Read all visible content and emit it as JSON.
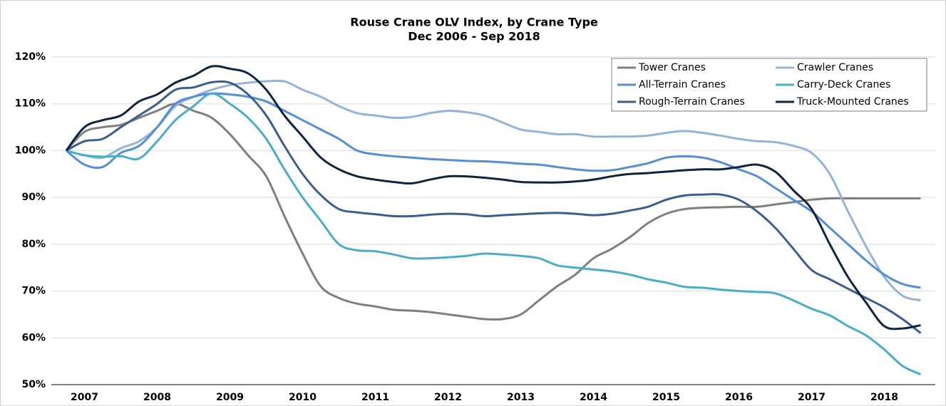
{
  "chart_data": {
    "type": "line",
    "title": "Rouse Crane OLV Index, by Crane Type",
    "subtitle": "Dec 2006 - Sep 2018",
    "categories": [
      null,
      "2007",
      null,
      null,
      null,
      "2008",
      null,
      null,
      null,
      "2009",
      null,
      null,
      null,
      "2010",
      null,
      null,
      null,
      "2011",
      null,
      null,
      null,
      "2012",
      null,
      null,
      null,
      "2013",
      null,
      null,
      null,
      "2014",
      null,
      null,
      null,
      "2015",
      null,
      null,
      null,
      "2016",
      null,
      null,
      null,
      "2017",
      null,
      null,
      null,
      "2018",
      null,
      null
    ],
    "series": [
      {
        "name": "Tower Cranes",
        "color": "#7f7f7f",
        "values": [
          100,
          104,
          105,
          105.5,
          107,
          108.5,
          110,
          108.5,
          107,
          103.5,
          99,
          94.5,
          86,
          78,
          71,
          68.5,
          67.3,
          66.7,
          66,
          65.8,
          65.5,
          65,
          64.5,
          64,
          64,
          65,
          68,
          71,
          73.5,
          77,
          79,
          81.5,
          84.5,
          86.5,
          87.5,
          87.8,
          87.9,
          88,
          88,
          88.5,
          89,
          89.5,
          89.8,
          89.8,
          89.8,
          89.8,
          89.8,
          89.8
        ]
      },
      {
        "name": "Crawler Cranes",
        "color": "#95b3d7",
        "values": [
          100,
          99,
          98.5,
          100.5,
          102,
          105,
          109.5,
          111.5,
          113,
          114,
          114.5,
          114.8,
          114.8,
          113,
          111.5,
          109.5,
          108,
          107.5,
          107,
          107.2,
          108,
          108.5,
          108.2,
          107.5,
          106,
          104.5,
          104,
          103.5,
          103.5,
          103,
          103,
          103,
          103.2,
          103.8,
          104.2,
          103.8,
          103.2,
          102.5,
          102,
          101.8,
          101,
          99.5,
          95,
          87,
          79.5,
          73,
          69,
          68
        ]
      },
      {
        "name": "All-Terrain Cranes",
        "color": "#558ed5",
        "values": [
          100,
          97,
          96.5,
          99.5,
          101,
          105,
          110,
          111.5,
          112.2,
          112,
          111.5,
          110.5,
          108.5,
          106.5,
          104.5,
          102.5,
          100,
          99.2,
          98.8,
          98.5,
          98.2,
          98,
          97.8,
          97.7,
          97.5,
          97.2,
          97,
          96.5,
          96,
          95.7,
          95.8,
          96.5,
          97.3,
          98.5,
          98.8,
          98.5,
          97.5,
          96,
          94.5,
          92,
          89.5,
          87,
          83.5,
          80,
          76.5,
          73.5,
          71.5,
          70.7
        ]
      },
      {
        "name": "Carry-Deck Cranes",
        "color": "#4bacc6",
        "values": [
          100,
          99,
          98.7,
          98.8,
          98.3,
          102,
          106.5,
          109.5,
          112.2,
          110,
          107,
          102.5,
          96,
          90,
          85,
          80,
          78.7,
          78.5,
          77.8,
          77,
          77,
          77.2,
          77.5,
          78,
          77.8,
          77.5,
          77,
          75.5,
          75,
          74.6,
          74.2,
          73.5,
          72.5,
          71.8,
          70.9,
          70.7,
          70.3,
          70,
          69.8,
          69.5,
          68,
          66.2,
          64.8,
          62.5,
          60.5,
          57.5,
          54,
          52.2
        ]
      },
      {
        "name": "Rough-Terrain Cranes",
        "color": "#3a5f8f",
        "values": [
          100,
          102,
          102.5,
          105,
          107.5,
          110,
          113,
          113.5,
          114.6,
          114.5,
          112,
          107.5,
          101,
          95,
          90.5,
          87.5,
          86.8,
          86.4,
          86,
          86,
          86.3,
          86.5,
          86.4,
          86,
          86.2,
          86.4,
          86.6,
          86.7,
          86.5,
          86.2,
          86.5,
          87.2,
          88,
          89.5,
          90.4,
          90.6,
          90.6,
          89.5,
          87,
          83.5,
          79,
          74.5,
          72.5,
          70.5,
          68.5,
          66.5,
          64,
          61
        ]
      },
      {
        "name": "Truck-Mounted Cranes",
        "color": "#0f243e",
        "values": [
          100,
          105,
          106.5,
          107.5,
          110.5,
          112,
          114.5,
          116,
          118,
          117.5,
          116.5,
          113,
          107.5,
          103,
          98.5,
          96,
          94.5,
          93.8,
          93.3,
          93,
          93.8,
          94.5,
          94.5,
          94.2,
          93.8,
          93.3,
          93.2,
          93.2,
          93.4,
          93.8,
          94.5,
          95,
          95.2,
          95.5,
          95.8,
          96,
          96,
          96.5,
          97,
          95.5,
          91.5,
          87.5,
          80,
          73,
          67.5,
          62.5,
          62,
          62.7
        ]
      }
    ],
    "ylim": [
      50,
      120
    ],
    "yticks": [
      {
        "value": 50,
        "label": "50%"
      },
      {
        "value": 60,
        "label": "60%"
      },
      {
        "value": 70,
        "label": "70%"
      },
      {
        "value": 80,
        "label": "80%"
      },
      {
        "value": 90,
        "label": "90%"
      },
      {
        "value": 100,
        "label": "100%"
      },
      {
        "value": 110,
        "label": "110%"
      },
      {
        "value": 120,
        "label": "120%"
      }
    ],
    "grid": true,
    "legend": "upper right"
  }
}
